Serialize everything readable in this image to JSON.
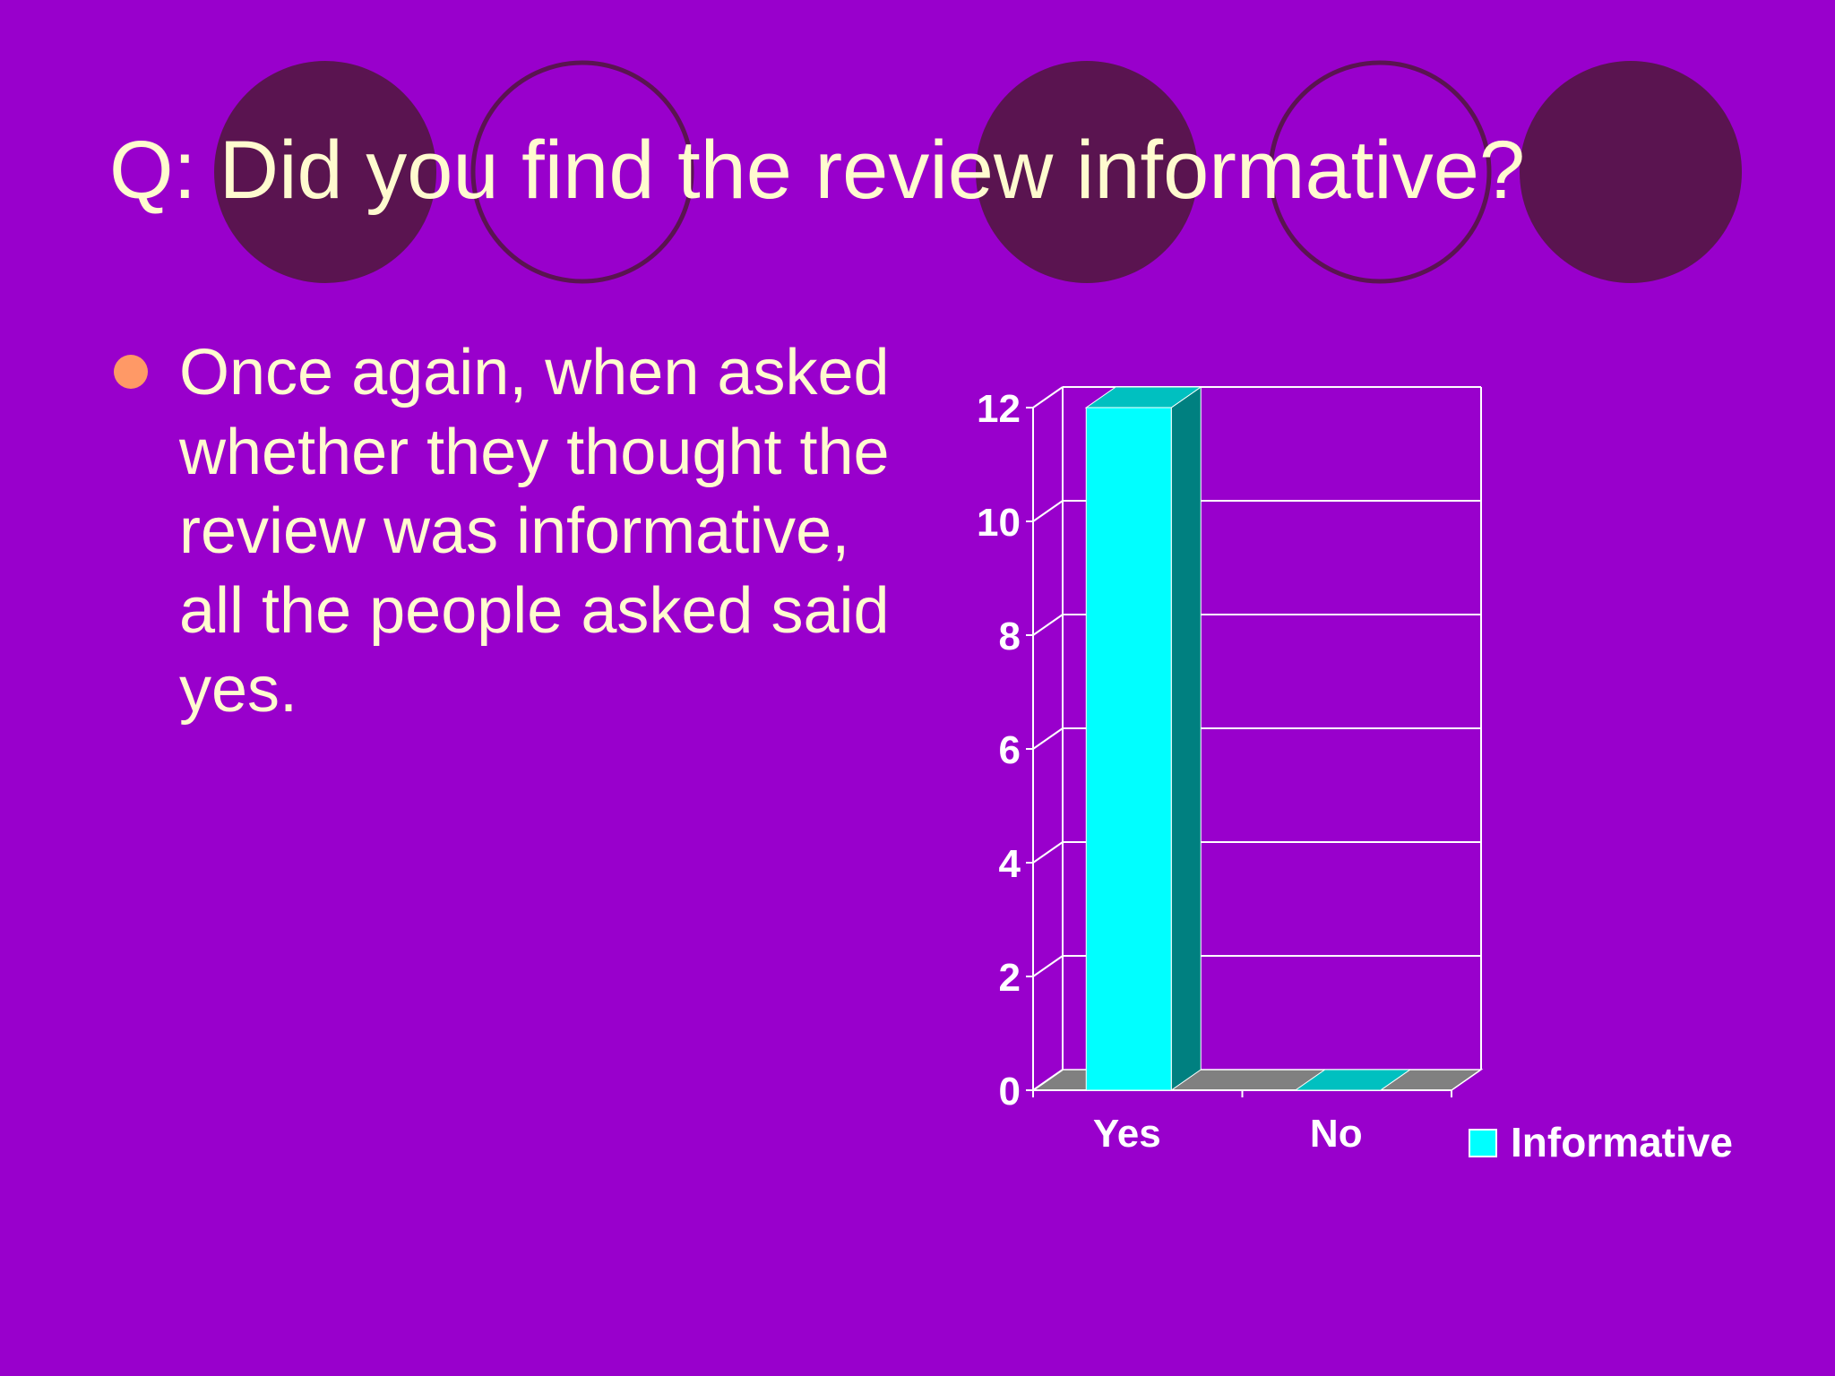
{
  "slide": {
    "title": "Q: Did you find the review informative?",
    "bullet": "Once again, when asked whether they thought the review was informative, all the people asked said yes."
  },
  "colors": {
    "background": "#9900cc",
    "title_text": "#fffbcf",
    "bullet_dot": "#ff9966",
    "bar_front": "#00ffff",
    "bar_side": "#008080",
    "bar_top": "#00c0c0",
    "floor": "#808080",
    "circle_fill": "#5a1450"
  },
  "chart_data": {
    "type": "bar",
    "categories": [
      "Yes",
      "No"
    ],
    "series": [
      {
        "name": "Informative",
        "values": [
          12,
          0
        ]
      }
    ],
    "ylim": [
      0,
      12
    ],
    "yticks": [
      0,
      2,
      4,
      6,
      8,
      10,
      12
    ],
    "grid": true,
    "three_d": true,
    "legend": "right"
  }
}
